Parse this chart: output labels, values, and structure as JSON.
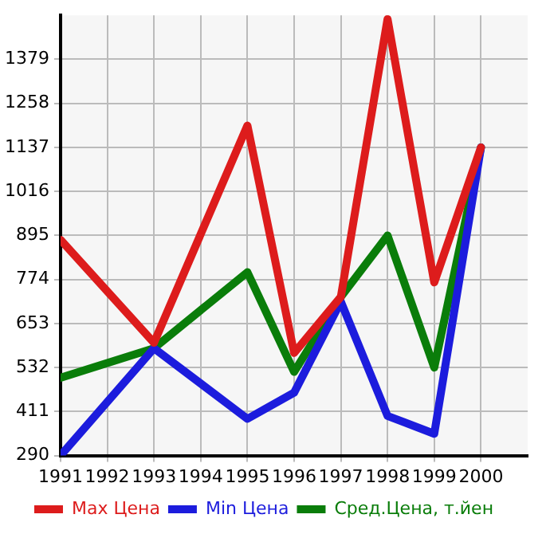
{
  "chart_data": {
    "type": "line",
    "x": [
      1991,
      1993,
      1995,
      1996,
      1997,
      1998,
      1999,
      2000
    ],
    "xlim": [
      1991,
      2001
    ],
    "xticks": [
      1991,
      1992,
      1993,
      1994,
      1995,
      1996,
      1997,
      1998,
      1999,
      2000
    ],
    "ylim": [
      290,
      1500
    ],
    "yticks": [
      290,
      411,
      532,
      653,
      774,
      895,
      1016,
      1137,
      1258,
      1379
    ],
    "grid": true,
    "legend": "bottom",
    "marker": "none",
    "line_style": "solid",
    "series": [
      {
        "name": "Max Цена",
        "color": "#dd1c1c",
        "values": [
          883,
          600,
          1197,
          572,
          726,
          1490,
          766,
          1137
        ]
      },
      {
        "name": "Min Цена",
        "color": "#1c1cdd",
        "values": [
          290,
          585,
          391,
          463,
          713,
          399,
          350,
          1137
        ]
      },
      {
        "name": "Сред.Цена, т.йен",
        "color": "#0a7d0a",
        "values": [
          504,
          585,
          794,
          520,
          726,
          895,
          532,
          1137
        ]
      }
    ]
  }
}
